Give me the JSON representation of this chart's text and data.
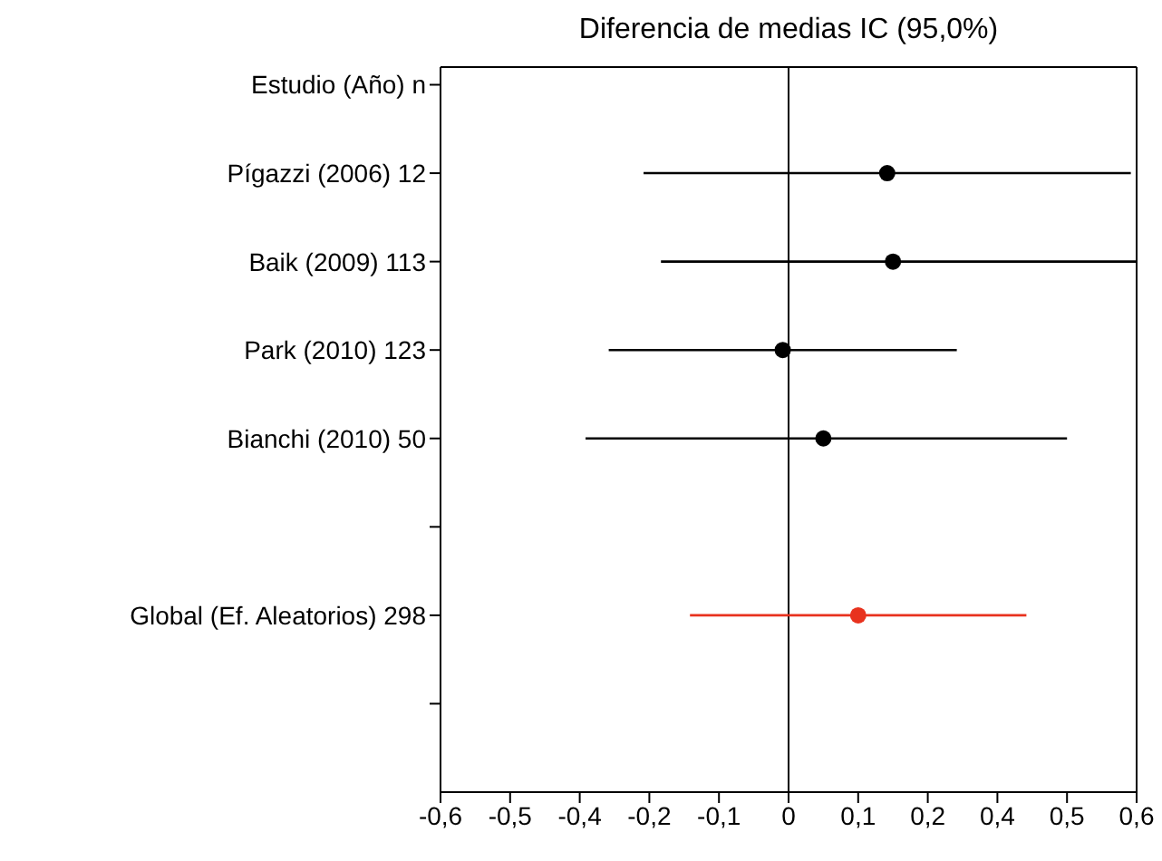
{
  "chart_data": {
    "type": "scatter",
    "orientation": "horizontal",
    "title": "Diferencia de medias IC (95,0%)",
    "categories": [
      "Estudio (Año)   n",
      "Pígazzi (2006)   12",
      "Baik (2009) 113",
      "Park (2010) 123",
      "Bianchi (2010)   50",
      null,
      "Global (Ef. Aleatorios) 298",
      null
    ],
    "values": [
      null,
      0.17,
      0.18,
      -0.01,
      0.06,
      null,
      0.12,
      null
    ],
    "errors": [
      null,
      [
        -0.25,
        0.59
      ],
      [
        -0.22,
        0.6
      ],
      [
        -0.31,
        0.29
      ],
      [
        -0.35,
        0.48
      ],
      null,
      [
        -0.17,
        0.41
      ],
      null
    ],
    "colors": [
      "#000000",
      "#000000",
      "#000000",
      "#000000",
      "#000000",
      "#000000",
      "#e8321e",
      "#000000"
    ],
    "marker": "circle",
    "xlim": [
      -0.6,
      0.6
    ],
    "xticks": [
      {
        "value": -0.6,
        "label": "-0,6"
      },
      {
        "value": -0.48,
        "label": "-0,5"
      },
      {
        "value": -0.36,
        "label": "-0,4"
      },
      {
        "value": -0.24,
        "label": "-0,2"
      },
      {
        "value": -0.12,
        "label": "-0,1"
      },
      {
        "value": 0,
        "label": "0"
      },
      {
        "value": 0.12,
        "label": "0,1"
      },
      {
        "value": 0.24,
        "label": "0,2"
      },
      {
        "value": 0.36,
        "label": "0,4"
      },
      {
        "value": 0.48,
        "label": "0,5"
      },
      {
        "value": 0.6,
        "label": "0,6"
      }
    ],
    "ref_lines": [
      {
        "axis": "x",
        "value": 0,
        "color": "#000000"
      }
    ]
  }
}
